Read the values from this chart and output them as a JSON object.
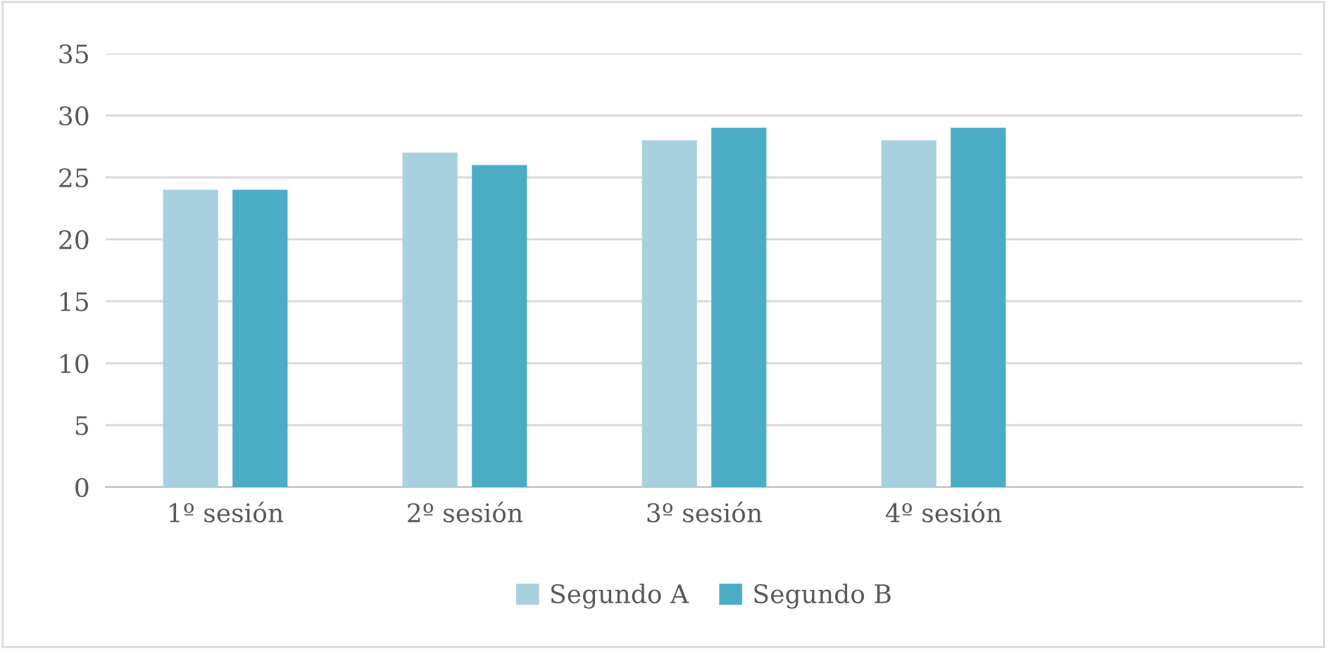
{
  "chart_data": {
    "type": "bar",
    "categories": [
      "1º sesión",
      "2º sesión",
      "3º sesión",
      "4º sesión",
      null
    ],
    "series": [
      {
        "name": "Segundo A",
        "color": "#a9d0de",
        "values": [
          24,
          27,
          28,
          28,
          null
        ]
      },
      {
        "name": "Segundo B",
        "color": "#4bacc6",
        "values": [
          24,
          26,
          29,
          29,
          null
        ]
      }
    ],
    "ylim": [
      0,
      35
    ],
    "yticks": [
      0,
      5,
      10,
      15,
      20,
      25,
      30,
      35
    ],
    "grid": "y",
    "legend": "bottom"
  }
}
